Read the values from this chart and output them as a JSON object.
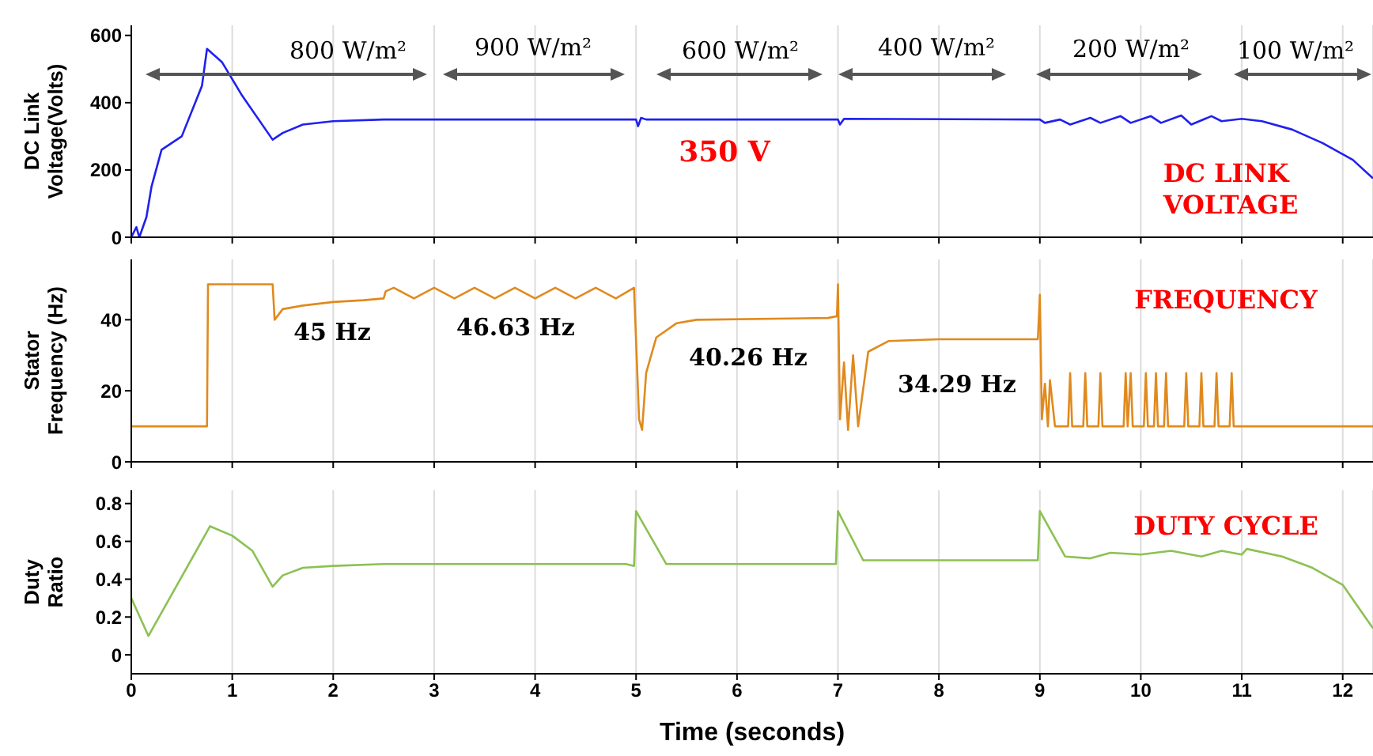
{
  "chart_data": [
    {
      "type": "line",
      "ylabel": "DC Link Voltage(Volts)",
      "xlim": [
        0,
        12.3
      ],
      "xticks": [
        0,
        1,
        2,
        3,
        4,
        5,
        6,
        7,
        8,
        9,
        10,
        11,
        12
      ],
      "ylim": [
        0,
        630
      ],
      "yticks": [
        0,
        200,
        400,
        600
      ],
      "grid": "x",
      "tick_labels": "y",
      "series": [
        {
          "color": "#2020f0",
          "x": [
            0,
            0.05,
            0.08,
            0.15,
            0.2,
            0.3,
            0.5,
            0.7,
            0.75,
            0.9,
            1.1,
            1.4,
            1.5,
            1.7,
            2,
            2.5,
            5,
            5.02,
            5.05,
            5.1,
            7,
            7.02,
            7.06,
            9,
            9.05,
            9.2,
            9.3,
            9.5,
            9.6,
            9.8,
            9.9,
            10.1,
            10.2,
            10.4,
            10.5,
            10.7,
            10.8,
            11,
            11.2,
            11.5,
            11.8,
            12.1,
            12.3
          ],
          "values": [
            0,
            30,
            0,
            60,
            150,
            260,
            300,
            450,
            560,
            520,
            420,
            290,
            310,
            335,
            345,
            350,
            350,
            330,
            355,
            350,
            350,
            335,
            352,
            350,
            340,
            350,
            335,
            355,
            340,
            360,
            340,
            360,
            340,
            362,
            335,
            360,
            345,
            352,
            345,
            320,
            280,
            230,
            175
          ]
        }
      ],
      "annotations": [
        "800 W/m²",
        "900 W/m²",
        "600 W/m²",
        "400 W/m²",
        "200 W/m²",
        "100 W/m²",
        "350 V",
        "DC LINK VOLTAGE"
      ]
    },
    {
      "type": "line",
      "ylabel": "Stator Frequency (Hz)",
      "xlim": [
        0,
        12.3
      ],
      "xticks": [
        0,
        1,
        2,
        3,
        4,
        5,
        6,
        7,
        8,
        9,
        10,
        11,
        12
      ],
      "ylim": [
        0,
        57
      ],
      "yticks": [
        0,
        20,
        40
      ],
      "grid": "x",
      "tick_labels": "y",
      "series": [
        {
          "color": "#e08a1e",
          "x": [
            0,
            0.75,
            0.76,
            1.4,
            1.42,
            1.5,
            1.7,
            2,
            2.3,
            2.5,
            2.52,
            2.6,
            2.8,
            3,
            3.2,
            3.4,
            3.6,
            3.8,
            4,
            4.2,
            4.4,
            4.6,
            4.8,
            4.98,
            5.03,
            5.06,
            5.1,
            5.2,
            5.4,
            5.6,
            6.9,
            6.99,
            7,
            7.02,
            7.06,
            7.1,
            7.15,
            7.2,
            7.3,
            7.5,
            8,
            8.98,
            9,
            9.02,
            9.05,
            9.08,
            9.1,
            9.15,
            9.28,
            9.3,
            9.32,
            9.43,
            9.45,
            9.47,
            9.58,
            9.6,
            9.62,
            9.83,
            9.85,
            9.87,
            9.9,
            9.92,
            10.03,
            10.05,
            10.07,
            10.13,
            10.15,
            10.17,
            10.23,
            10.25,
            10.27,
            10.43,
            10.45,
            10.47,
            10.58,
            10.6,
            10.62,
            10.73,
            10.75,
            10.77,
            10.88,
            10.9,
            10.92,
            12.3
          ],
          "values": [
            10,
            10,
            50,
            50,
            40,
            43,
            44,
            45,
            45.5,
            46,
            48,
            49,
            46,
            49,
            46,
            49,
            46,
            49,
            46,
            49,
            46,
            49,
            46,
            49,
            12,
            9,
            25,
            35,
            39,
            40,
            40.5,
            41,
            50,
            12,
            28,
            9,
            30,
            10,
            31,
            34,
            34.5,
            34.5,
            47,
            12,
            22,
            10,
            23,
            10,
            10,
            25,
            10,
            10,
            25,
            10,
            10,
            25,
            10,
            10,
            25,
            10,
            25,
            10,
            10,
            25,
            10,
            10,
            25,
            10,
            10,
            25,
            10,
            10,
            25,
            10,
            10,
            25,
            10,
            10,
            25,
            10,
            10,
            25,
            10,
            10
          ]
        }
      ],
      "annotations": [
        "45 Hz",
        "46.63 Hz",
        "40.26 Hz",
        "34.29 Hz",
        "FREQUENCY"
      ]
    },
    {
      "type": "line",
      "xlabel": "Time (seconds)",
      "ylabel": "Duty Ratio",
      "xlim": [
        0,
        12.3
      ],
      "xticks": [
        0,
        1,
        2,
        3,
        4,
        5,
        6,
        7,
        8,
        9,
        10,
        11,
        12
      ],
      "ylim": [
        -0.1,
        0.87
      ],
      "yticks": [
        0,
        0.2,
        0.4,
        0.6,
        0.8
      ],
      "grid": "x",
      "series": [
        {
          "color": "#8cc152",
          "x": [
            0,
            0.17,
            0.78,
            1,
            1.2,
            1.4,
            1.5,
            1.7,
            2,
            2.5,
            4.9,
            4.98,
            5,
            5.3,
            6.98,
            7,
            7.25,
            8.98,
            9,
            9.25,
            9.5,
            9.7,
            10,
            10.3,
            10.6,
            10.8,
            11,
            11.05,
            11.4,
            11.7,
            12,
            12.3
          ],
          "values": [
            0.3,
            0.1,
            0.68,
            0.63,
            0.55,
            0.36,
            0.42,
            0.46,
            0.47,
            0.48,
            0.48,
            0.47,
            0.76,
            0.48,
            0.48,
            0.76,
            0.5,
            0.5,
            0.76,
            0.52,
            0.51,
            0.54,
            0.53,
            0.55,
            0.52,
            0.55,
            0.53,
            0.56,
            0.52,
            0.46,
            0.37,
            0.14
          ]
        }
      ],
      "annotations": [
        "DUTY CYCLE"
      ]
    }
  ]
}
